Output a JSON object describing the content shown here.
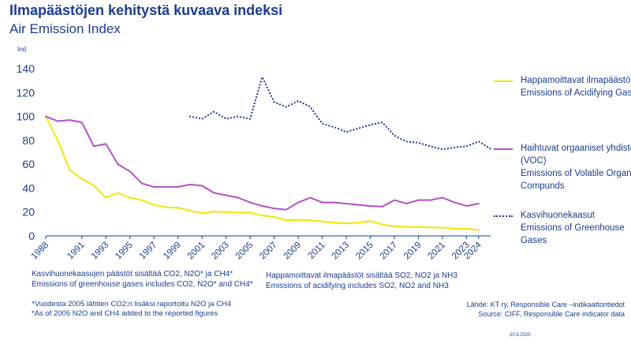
{
  "header": {
    "title": "Ilmapäästöjen kehitystä kuvaava indeksi",
    "subtitle": "Air Emission Index"
  },
  "chart_data": {
    "type": "line",
    "ylabel": "Ind",
    "ylim": [
      0,
      140
    ],
    "yticks": [
      0,
      20,
      40,
      60,
      80,
      100,
      120,
      140
    ],
    "xticks": [
      "1988",
      "1991",
      "1993",
      "1995",
      "1997",
      "1999",
      "2001",
      "2003",
      "2005",
      "2007",
      "2009",
      "2011",
      "2013",
      "2015",
      "2017",
      "2019",
      "2021",
      "2023",
      "2024"
    ],
    "grid": false,
    "legend_position": "right",
    "series": [
      {
        "name": "Happamoittavat ilmapäästöt\nEmissions of Acidifying Gases",
        "color": "#f2e600",
        "style": "solid",
        "points": [
          [
            1988,
            100
          ],
          [
            1989,
            80
          ],
          [
            1990,
            55
          ],
          [
            1991,
            48
          ],
          [
            1992,
            42
          ],
          [
            1993,
            32
          ],
          [
            1994,
            36
          ],
          [
            1995,
            32
          ],
          [
            1996,
            30
          ],
          [
            1997,
            26
          ],
          [
            1998,
            24
          ],
          [
            1999,
            23.5
          ],
          [
            2000,
            21
          ],
          [
            2001,
            19
          ],
          [
            2002,
            20.5
          ],
          [
            2003,
            20
          ],
          [
            2004,
            19.5
          ],
          [
            2005,
            19.5
          ],
          [
            2006,
            17
          ],
          [
            2007,
            16
          ],
          [
            2008,
            13
          ],
          [
            2009,
            13.5
          ],
          [
            2010,
            13
          ],
          [
            2011,
            12
          ],
          [
            2012,
            11
          ],
          [
            2013,
            10.5
          ],
          [
            2014,
            11
          ],
          [
            2015,
            12.5
          ],
          [
            2016,
            9.5
          ],
          [
            2017,
            8
          ],
          [
            2018,
            7.5
          ],
          [
            2019,
            7.5
          ],
          [
            2020,
            7
          ],
          [
            2021,
            7
          ],
          [
            2022,
            6
          ],
          [
            2023,
            6
          ],
          [
            2024,
            5
          ]
        ]
      },
      {
        "name": "Haihtuvat orgaaniset yhdisteet (VOC)\nEmissions of Volatile Organic Compunds",
        "color": "#b44fc4",
        "style": "solid",
        "points": [
          [
            1988,
            100
          ],
          [
            1989,
            96
          ],
          [
            1990,
            97
          ],
          [
            1991,
            95
          ],
          [
            1992,
            75
          ],
          [
            1993,
            77
          ],
          [
            1994,
            60
          ],
          [
            1995,
            54
          ],
          [
            1996,
            44
          ],
          [
            1997,
            41
          ],
          [
            1998,
            41
          ],
          [
            1999,
            41
          ],
          [
            2000,
            43
          ],
          [
            2001,
            42
          ],
          [
            2002,
            36
          ],
          [
            2003,
            34
          ],
          [
            2004,
            32
          ],
          [
            2005,
            28
          ],
          [
            2006,
            25
          ],
          [
            2007,
            23
          ],
          [
            2008,
            22
          ],
          [
            2009,
            28
          ],
          [
            2010,
            32
          ],
          [
            2011,
            28
          ],
          [
            2012,
            28
          ],
          [
            2013,
            27
          ],
          [
            2014,
            26
          ],
          [
            2015,
            25
          ],
          [
            2016,
            24.5
          ],
          [
            2017,
            30
          ],
          [
            2018,
            27
          ],
          [
            2019,
            30
          ],
          [
            2020,
            30
          ],
          [
            2021,
            32
          ],
          [
            2022,
            28
          ],
          [
            2023,
            25
          ],
          [
            2024,
            27
          ]
        ]
      },
      {
        "name": "Kasvihuonekaasut\nEmissions of Greenhouse Gases",
        "color": "#1f3d87",
        "style": "dotted",
        "points": [
          [
            2000,
            100
          ],
          [
            2001,
            98
          ],
          [
            2002,
            104
          ],
          [
            2003,
            98
          ],
          [
            2004,
            100
          ],
          [
            2005,
            98
          ],
          [
            2006,
            133
          ],
          [
            2007,
            112
          ],
          [
            2008,
            108
          ],
          [
            2009,
            113
          ],
          [
            2010,
            108
          ],
          [
            2011,
            94
          ],
          [
            2012,
            91
          ],
          [
            2013,
            87
          ],
          [
            2014,
            90
          ],
          [
            2015,
            93
          ],
          [
            2016,
            95
          ],
          [
            2017,
            84
          ],
          [
            2018,
            79
          ],
          [
            2019,
            78
          ],
          [
            2020,
            75
          ],
          [
            2021,
            72.5
          ],
          [
            2022,
            74
          ],
          [
            2023,
            75
          ],
          [
            2024,
            79
          ],
          [
            2025,
            73
          ]
        ]
      }
    ]
  },
  "notes": {
    "ghg_fi": "Kasvihuonekaasujen päästöt sisältää CO2, N2O* ja CH4*",
    "ghg_en": "Emissions of greenhouse gases includes CO2, N2O* and CH4*",
    "acid_fi": "Happamoittavat ilmapäästöt sisältää SO2, NO2 ja NH3",
    "acid_en": "Emissions of acidifying includes SO2, NO2 and NH3",
    "footnote_fi": "*Vuodesta 2005 lähtien CO2:n lisäksi raportoitu N2O ja CH4",
    "footnote_en": "*As of 2005 N2O and CH4 added to the reported figures",
    "source_fi": "Lähde: KT ry, Responsible Care –indikaattoritiedot",
    "source_en": "Source: CIFF, Responsible Care indicator data",
    "date": "20.5.2025"
  }
}
